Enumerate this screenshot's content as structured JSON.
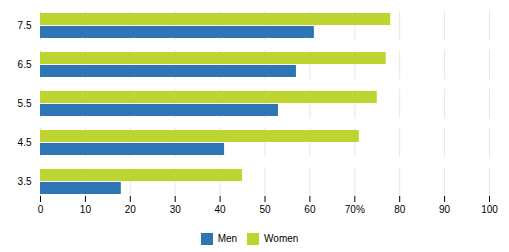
{
  "chart_data": {
    "type": "bar",
    "orientation": "horizontal",
    "categories": [
      "3.5",
      "4.5",
      "5.5",
      "6.5",
      "7.5"
    ],
    "series": [
      {
        "name": "Men",
        "color": "#2e75b6",
        "values": [
          18,
          41,
          53,
          57,
          61
        ]
      },
      {
        "name": "Women",
        "color": "#bdd431",
        "values": [
          45,
          71,
          75,
          77,
          78
        ]
      }
    ],
    "xlim": [
      0,
      100
    ],
    "xticks": [
      0,
      10,
      20,
      30,
      40,
      50,
      60,
      {
        "value": 70,
        "label": "70%"
      },
      80,
      90,
      100
    ],
    "grid": true,
    "legend": "bottom"
  }
}
